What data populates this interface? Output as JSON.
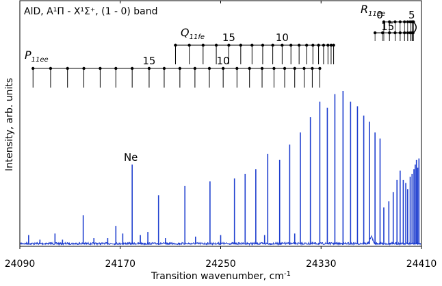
{
  "chart_data": {
    "type": "line",
    "title": "AlD, A¹Π - X¹Σ⁺, (1 - 0) band",
    "xlabel": "Transition wavenumber, cm",
    "xlabel_sup": "-1",
    "ylabel": "Intensity, arb. units",
    "xlim": [
      24090,
      24410
    ],
    "x_ticks": [
      24090,
      24170,
      24250,
      24330,
      24410
    ],
    "x_tick_labels": [
      "24090",
      "24170",
      "24250",
      "24330",
      "24410"
    ],
    "ylim": [
      0,
      1
    ],
    "grid": false,
    "line_color": "#1f3fcf",
    "annotation": {
      "label": "Ne",
      "x": 24179.5
    },
    "branches": [
      {
        "name": "P",
        "sub": "11ee",
        "lines": [
          {
            "J": 22,
            "x": 24100.5
          },
          {
            "J": 21,
            "x": 24114.5
          },
          {
            "J": 20,
            "x": 24128.0
          },
          {
            "J": 19,
            "x": 24141.0
          },
          {
            "J": 18,
            "x": 24154.0
          },
          {
            "J": 17,
            "x": 24166.5
          },
          {
            "J": 16,
            "x": 24179.5
          },
          {
            "J": 15,
            "x": 24193.0
          },
          {
            "J": 14,
            "x": 24205.0
          },
          {
            "J": 13,
            "x": 24217.5
          },
          {
            "J": 12,
            "x": 24229.5
          },
          {
            "J": 11,
            "x": 24241.0
          },
          {
            "J": 10,
            "x": 24252.0
          },
          {
            "J": 9,
            "x": 24263.0
          },
          {
            "J": 8,
            "x": 24273.0
          },
          {
            "J": 7,
            "x": 24283.0
          },
          {
            "J": 6,
            "x": 24292.5
          },
          {
            "J": 5,
            "x": 24301.0
          },
          {
            "J": 4,
            "x": 24309.0
          },
          {
            "J": 3,
            "x": 24316.5
          },
          {
            "J": 2,
            "x": 24323.0
          },
          {
            "J": 1,
            "x": 24329.0
          }
        ],
        "number_labels": [
          {
            "text": "15",
            "x": 24193.0
          },
          {
            "text": "10",
            "x": 24252.0
          }
        ]
      },
      {
        "name": "Q",
        "sub": "11fe",
        "lines": [
          {
            "J": 19,
            "x": 24214.0
          },
          {
            "J": 18,
            "x": 24225.0
          },
          {
            "J": 17,
            "x": 24236.0
          },
          {
            "J": 16,
            "x": 24246.5
          },
          {
            "J": 15,
            "x": 24256.5
          },
          {
            "J": 14,
            "x": 24266.0
          },
          {
            "J": 13,
            "x": 24275.0
          },
          {
            "J": 12,
            "x": 24283.5
          },
          {
            "J": 11,
            "x": 24291.5
          },
          {
            "J": 10,
            "x": 24299.0
          },
          {
            "J": 9,
            "x": 24306.0
          },
          {
            "J": 8,
            "x": 24312.5
          },
          {
            "J": 7,
            "x": 24318.5
          },
          {
            "J": 6,
            "x": 24323.5
          },
          {
            "J": 5,
            "x": 24328.0
          },
          {
            "J": 4,
            "x": 24332.0
          },
          {
            "J": 3,
            "x": 24335.5
          },
          {
            "J": 2,
            "x": 24338.0
          },
          {
            "J": 1,
            "x": 24340.0
          }
        ],
        "number_labels": [
          {
            "text": "15",
            "x": 24256.5
          },
          {
            "text": "10",
            "x": 24299.0
          }
        ]
      },
      {
        "name": "R",
        "sub": "11ee",
        "lines": [
          {
            "J": 0,
            "x": 24380.0
          },
          {
            "J": 1,
            "x": 24384.5
          },
          {
            "J": 2,
            "x": 24389.0
          },
          {
            "J": 3,
            "x": 24393.0
          },
          {
            "J": 4,
            "x": 24396.5
          },
          {
            "J": 5,
            "x": 24399.0
          },
          {
            "J": 6,
            "x": 24401.0
          },
          {
            "J": 7,
            "x": 24402.5
          },
          {
            "J": 8,
            "x": 24403.3
          },
          {
            "J": 9,
            "x": 24403.6
          },
          {
            "J": 10,
            "x": 24403.3
          },
          {
            "J": 11,
            "x": 24402.5
          },
          {
            "J": 12,
            "x": 24401.0
          },
          {
            "J": 13,
            "x": 24399.0
          },
          {
            "J": 14,
            "x": 24396.5
          },
          {
            "J": 15,
            "x": 24393.0
          },
          {
            "J": 16,
            "x": 24389.0
          },
          {
            "J": 17,
            "x": 24384.5
          },
          {
            "J": 18,
            "x": 24379.0
          },
          {
            "J": 19,
            "x": 24373.0
          }
        ],
        "number_labels": [
          {
            "text": "0",
            "x": 24380.0
          },
          {
            "text": "5",
            "x": 24399.0
          },
          {
            "text": "15",
            "x": 24393.0
          }
        ]
      }
    ],
    "peaks": [
      {
        "x": 24097.0,
        "y": 0.06
      },
      {
        "x": 24106.0,
        "y": 0.03
      },
      {
        "x": 24118.0,
        "y": 0.07
      },
      {
        "x": 24124.0,
        "y": 0.03
      },
      {
        "x": 24140.5,
        "y": 0.19
      },
      {
        "x": 24149.0,
        "y": 0.04
      },
      {
        "x": 24160.0,
        "y": 0.04
      },
      {
        "x": 24166.5,
        "y": 0.12
      },
      {
        "x": 24172.0,
        "y": 0.07
      },
      {
        "x": 24179.5,
        "y": 0.52
      },
      {
        "x": 24186.0,
        "y": 0.06
      },
      {
        "x": 24192.0,
        "y": 0.08
      },
      {
        "x": 24200.5,
        "y": 0.32
      },
      {
        "x": 24206.0,
        "y": 0.04
      },
      {
        "x": 24221.5,
        "y": 0.38
      },
      {
        "x": 24230.0,
        "y": 0.05
      },
      {
        "x": 24241.5,
        "y": 0.41
      },
      {
        "x": 24250.0,
        "y": 0.06
      },
      {
        "x": 24261.0,
        "y": 0.43
      },
      {
        "x": 24269.5,
        "y": 0.46
      },
      {
        "x": 24278.0,
        "y": 0.49
      },
      {
        "x": 24285.0,
        "y": 0.06
      },
      {
        "x": 24287.5,
        "y": 0.59
      },
      {
        "x": 24297.0,
        "y": 0.55
      },
      {
        "x": 24305.0,
        "y": 0.65
      },
      {
        "x": 24309.0,
        "y": 0.07
      },
      {
        "x": 24313.5,
        "y": 0.73
      },
      {
        "x": 24321.5,
        "y": 0.83
      },
      {
        "x": 24329.0,
        "y": 0.93
      },
      {
        "x": 24335.0,
        "y": 0.89
      },
      {
        "x": 24341.0,
        "y": 0.98
      },
      {
        "x": 24347.5,
        "y": 1.0
      },
      {
        "x": 24353.5,
        "y": 0.93
      },
      {
        "x": 24359.0,
        "y": 0.9
      },
      {
        "x": 24364.0,
        "y": 0.84
      },
      {
        "x": 24368.5,
        "y": 0.8
      },
      {
        "x": 24373.0,
        "y": 0.73
      },
      {
        "x": 24377.0,
        "y": 0.69
      },
      {
        "x": 24380.0,
        "y": 0.24
      },
      {
        "x": 24384.0,
        "y": 0.28
      },
      {
        "x": 24387.5,
        "y": 0.34
      },
      {
        "x": 24390.5,
        "y": 0.42
      },
      {
        "x": 24393.0,
        "y": 0.48
      },
      {
        "x": 24395.5,
        "y": 0.42
      },
      {
        "x": 24397.5,
        "y": 0.4
      },
      {
        "x": 24399.0,
        "y": 0.36
      },
      {
        "x": 24401.0,
        "y": 0.44
      },
      {
        "x": 24402.5,
        "y": 0.46
      },
      {
        "x": 24404.0,
        "y": 0.49
      },
      {
        "x": 24405.0,
        "y": 0.52
      },
      {
        "x": 24406.0,
        "y": 0.55
      },
      {
        "x": 24407.0,
        "y": 0.5
      },
      {
        "x": 24408.0,
        "y": 0.56
      }
    ]
  }
}
